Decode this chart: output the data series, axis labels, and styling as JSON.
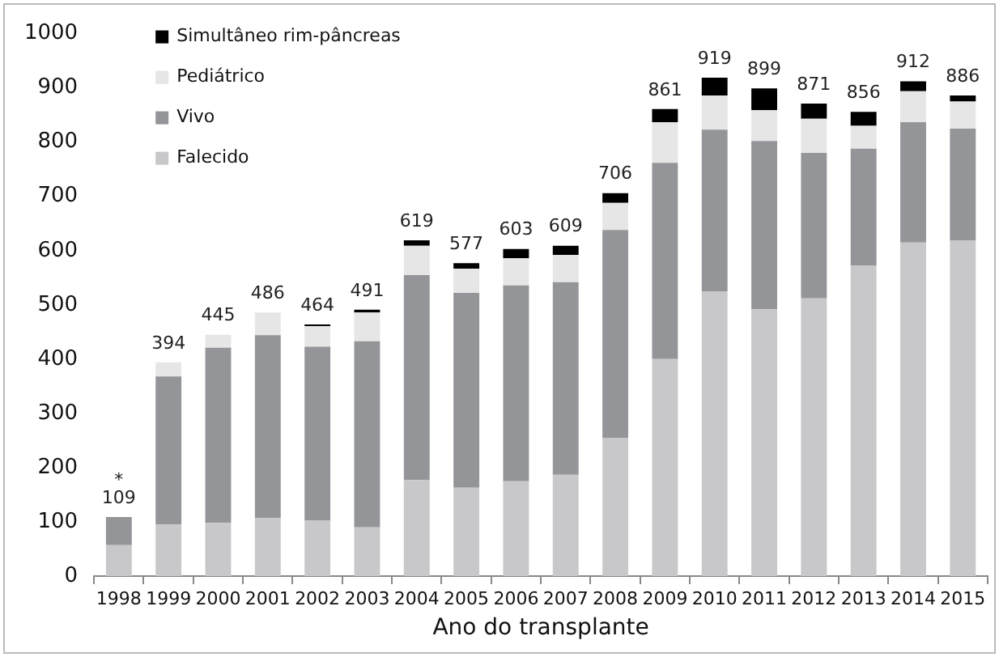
{
  "chart_data": {
    "type": "bar",
    "stacked": true,
    "xlabel": "Ano do transplante",
    "categories": [
      "1998",
      "1999",
      "2000",
      "2001",
      "2002",
      "2003",
      "2004",
      "2005",
      "2006",
      "2007",
      "2008",
      "2009",
      "2010",
      "2011",
      "2012",
      "2013",
      "2014",
      "2015"
    ],
    "series": [
      {
        "name": "Falecido",
        "color": "#c8c8ca",
        "values": [
          57,
          95,
          98,
          107,
          103,
          90,
          177,
          163,
          175,
          187,
          255,
          400,
          525,
          492,
          512,
          572,
          615,
          619
        ]
      },
      {
        "name": "Vivo",
        "color": "#939598",
        "values": [
          52,
          273,
          323,
          337,
          320,
          343,
          378,
          359,
          361,
          355,
          383,
          362,
          298,
          310,
          268,
          216,
          222,
          206
        ]
      },
      {
        "name": "Pediátrico",
        "color": "#e6e6e6",
        "values": [
          0,
          26,
          24,
          42,
          38,
          53,
          54,
          45,
          50,
          50,
          50,
          75,
          63,
          57,
          63,
          42,
          57,
          50
        ]
      },
      {
        "name": "Simultâneo rim-pâncreas",
        "color": "#000000",
        "values": [
          0,
          0,
          0,
          0,
          3,
          5,
          10,
          10,
          17,
          17,
          18,
          24,
          33,
          40,
          28,
          26,
          18,
          11
        ]
      }
    ],
    "totals": [
      "109",
      "394",
      "445",
      "486",
      "464",
      "491",
      "619",
      "577",
      "603",
      "609",
      "706",
      "861",
      "919",
      "899",
      "871",
      "856",
      "912",
      "886"
    ],
    "annotations": [
      {
        "text": "*",
        "x": "1998",
        "y": 109
      }
    ],
    "ylim": [
      0,
      1000
    ],
    "yticks": [
      0,
      100,
      200,
      300,
      400,
      500,
      600,
      700,
      800,
      900,
      1000
    ],
    "grid": false,
    "legend": "top left"
  }
}
